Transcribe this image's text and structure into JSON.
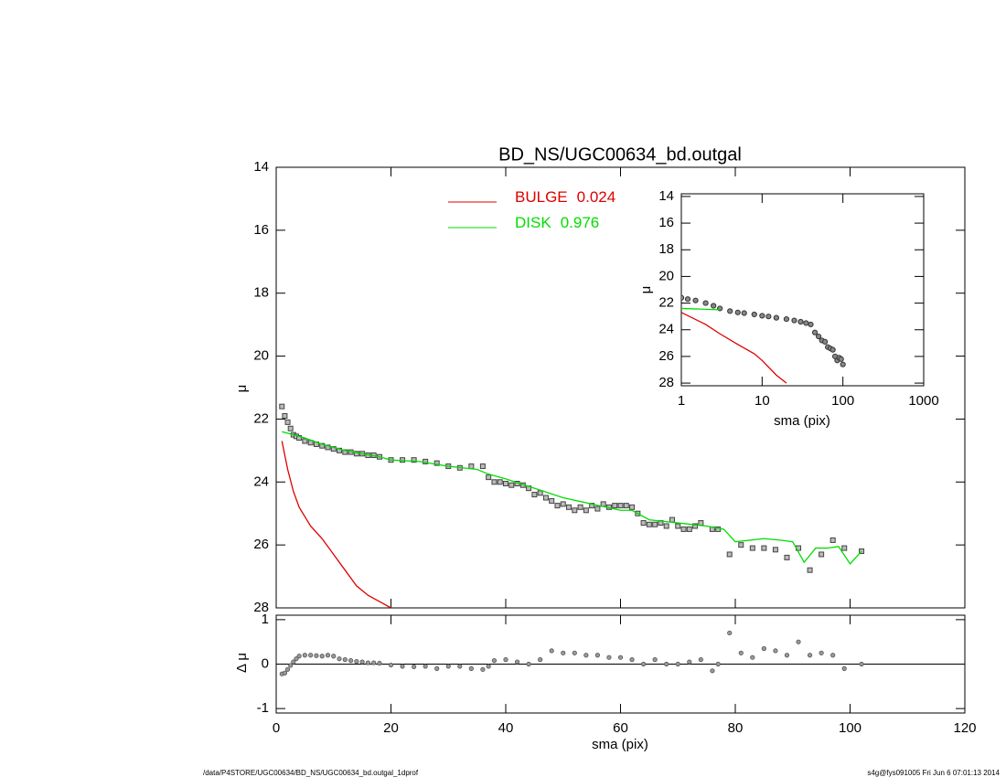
{
  "chart_data": [
    {
      "type": "scatter",
      "title": "BD_NS/UGC00634_bd.outgal",
      "ylabel": "μ",
      "xlim": [
        0,
        120
      ],
      "ylim": [
        28,
        14
      ],
      "yticks": [
        14,
        16,
        18,
        20,
        22,
        24,
        26,
        28
      ],
      "series": [
        {
          "color": "#444444",
          "x": [
            1,
            1.5,
            2,
            2.5,
            3,
            3.5,
            4,
            5,
            6,
            7,
            8,
            9,
            10,
            11,
            12,
            13,
            14,
            15,
            16,
            17,
            18,
            20,
            22,
            24,
            26,
            28,
            30,
            32,
            34,
            36,
            37,
            38,
            39,
            40,
            41,
            42,
            43,
            44,
            45,
            46,
            47,
            48,
            49,
            50,
            51,
            52,
            53,
            54,
            55,
            56,
            57,
            58,
            59,
            60,
            61,
            62,
            63,
            64,
            65,
            66,
            67,
            68,
            69,
            70,
            71,
            72,
            73,
            74,
            76,
            77,
            79,
            81,
            83,
            85,
            87,
            89,
            91,
            93,
            95,
            97,
            99,
            102
          ],
          "values": [
            21.6,
            21.9,
            22.1,
            22.3,
            22.5,
            22.55,
            22.6,
            22.7,
            22.75,
            22.8,
            22.85,
            22.9,
            22.95,
            23.0,
            23.05,
            23.05,
            23.1,
            23.1,
            23.15,
            23.15,
            23.2,
            23.3,
            23.3,
            23.3,
            23.35,
            23.4,
            23.5,
            23.55,
            23.5,
            23.5,
            23.85,
            24.0,
            24.0,
            24.05,
            24.1,
            24.05,
            24.1,
            24.2,
            24.4,
            24.35,
            24.5,
            24.6,
            24.75,
            24.7,
            24.8,
            24.9,
            24.8,
            24.9,
            24.75,
            24.85,
            24.7,
            24.8,
            24.75,
            24.75,
            24.75,
            24.8,
            25.0,
            25.3,
            25.35,
            25.35,
            25.3,
            25.4,
            25.2,
            25.4,
            25.5,
            25.5,
            25.4,
            25.3,
            25.5,
            25.5,
            26.3,
            26.0,
            26.1,
            26.1,
            26.15,
            26.4,
            26.1,
            26.8,
            26.3,
            25.85,
            26.1,
            26.2
          ]
        },
        {
          "type": "line",
          "name": "BULGE",
          "fraction": 0.024,
          "color": "#dd0000",
          "x": [
            1,
            2,
            3,
            4,
            5,
            6,
            8,
            10,
            12,
            14,
            16,
            18,
            20
          ],
          "values": [
            22.7,
            23.6,
            24.3,
            24.8,
            25.1,
            25.4,
            25.8,
            26.3,
            26.8,
            27.3,
            27.6,
            27.8,
            28.0
          ]
        },
        {
          "type": "line",
          "name": "DISK",
          "fraction": 0.976,
          "color": "#00dd00",
          "x": [
            1,
            3,
            5,
            8,
            10,
            12,
            15,
            18,
            20,
            25,
            30,
            35,
            37,
            40,
            45,
            50,
            55,
            60,
            62,
            65,
            70,
            75,
            78,
            80,
            85,
            88,
            90,
            92,
            94,
            96,
            98,
            100,
            102
          ],
          "values": [
            22.4,
            22.5,
            22.6,
            22.8,
            22.9,
            23.0,
            23.1,
            23.2,
            23.3,
            23.35,
            23.5,
            23.6,
            23.75,
            23.9,
            24.2,
            24.5,
            24.7,
            24.9,
            24.9,
            25.2,
            25.3,
            25.4,
            25.5,
            25.9,
            25.8,
            25.85,
            25.9,
            26.55,
            26.1,
            26.1,
            26.05,
            26.6,
            26.2
          ]
        }
      ]
    },
    {
      "type": "scatter",
      "ylabel": "Δ μ",
      "xlabel": "sma (pix)",
      "zero_line": true,
      "xlim": [
        0,
        120
      ],
      "xticks": [
        0,
        20,
        40,
        60,
        80,
        100,
        120
      ],
      "ylim": [
        -1.1,
        1.1
      ],
      "yticks": [
        1,
        0,
        -1
      ],
      "series": [
        {
          "color": "#555555",
          "x": [
            1,
            1.5,
            2,
            2.5,
            3,
            3.5,
            4,
            5,
            6,
            7,
            8,
            9,
            10,
            11,
            12,
            13,
            14,
            15,
            16,
            17,
            18,
            20,
            22,
            24,
            26,
            28,
            30,
            32,
            34,
            36,
            37,
            38,
            40,
            42,
            44,
            46,
            48,
            50,
            52,
            54,
            56,
            58,
            60,
            62,
            64,
            66,
            68,
            70,
            72,
            74,
            76,
            77,
            79,
            81,
            83,
            85,
            87,
            89,
            91,
            93,
            95,
            97,
            99,
            102
          ],
          "values": [
            -0.22,
            -0.2,
            -0.12,
            -0.03,
            0.05,
            0.12,
            0.18,
            0.2,
            0.2,
            0.19,
            0.18,
            0.2,
            0.18,
            0.12,
            0.1,
            0.08,
            0.06,
            0.05,
            0.03,
            0.03,
            0.02,
            -0.02,
            -0.05,
            -0.06,
            -0.05,
            -0.1,
            -0.05,
            -0.05,
            -0.1,
            -0.12,
            -0.05,
            0.08,
            0.1,
            0.05,
            0.0,
            0.1,
            0.3,
            0.25,
            0.25,
            0.2,
            0.2,
            0.15,
            0.15,
            0.1,
            0.0,
            0.1,
            0.0,
            0.0,
            0.05,
            0.1,
            -0.15,
            0.0,
            0.7,
            0.25,
            0.15,
            0.35,
            0.3,
            0.2,
            0.5,
            0.2,
            0.25,
            0.2,
            -0.1,
            0.0
          ]
        }
      ]
    },
    {
      "type": "scatter",
      "ylabel": "μ",
      "xlabel": "sma (pix)",
      "xlog": true,
      "xlim": [
        1,
        1000
      ],
      "xticks": [
        1,
        10,
        100,
        1000
      ],
      "ylim": [
        28.2,
        13.8
      ],
      "yticks": [
        14,
        16,
        18,
        20,
        22,
        24,
        26,
        28
      ],
      "series": [
        {
          "color": "#333333",
          "x": [
            1,
            1.2,
            1.5,
            2,
            2.5,
            3,
            4,
            5,
            6,
            8,
            10,
            12,
            15,
            20,
            25,
            30,
            35,
            40,
            45,
            50,
            55,
            60,
            65,
            70,
            75,
            80,
            85,
            90,
            95,
            100
          ],
          "values": [
            21.6,
            21.7,
            21.8,
            22.0,
            22.2,
            22.4,
            22.6,
            22.7,
            22.75,
            22.85,
            22.95,
            23.0,
            23.1,
            23.2,
            23.3,
            23.4,
            23.5,
            23.6,
            24.2,
            24.5,
            24.8,
            24.9,
            25.3,
            25.4,
            25.5,
            26.0,
            26.3,
            26.1,
            26.2,
            26.6
          ]
        },
        {
          "type": "line",
          "color": "#dd0000",
          "x": [
            1,
            2,
            3,
            5,
            8,
            10,
            15,
            20
          ],
          "values": [
            22.7,
            23.6,
            24.3,
            25.1,
            25.8,
            26.3,
            27.4,
            28.0
          ]
        },
        {
          "type": "line",
          "color": "#00dd00",
          "x": [
            1,
            3
          ],
          "values": [
            22.4,
            22.5
          ]
        }
      ]
    }
  ],
  "footer": {
    "left": "/data/P4STORE/UGC00634/BD_NS/UGC00634_bd.outgal_1dprof",
    "right": "s4g@fys091005  Fri Jun  6 07:01:13 2014"
  }
}
